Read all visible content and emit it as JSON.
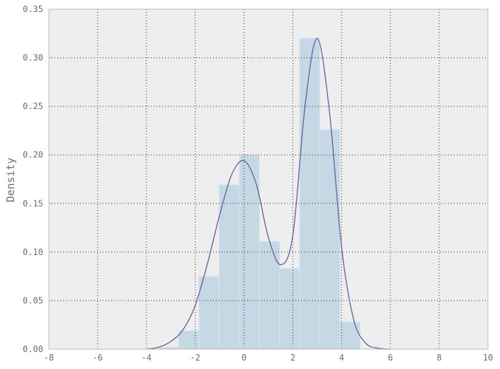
{
  "chart_data": {
    "type": "bar",
    "title": "",
    "xlabel": "",
    "ylabel": "Density",
    "xlim": [
      -8,
      10
    ],
    "ylim": [
      0,
      0.35
    ],
    "xticks": [
      "-8",
      "-6",
      "-4",
      "-2",
      "0",
      "2",
      "4",
      "6",
      "8",
      "10"
    ],
    "yticks": [
      "0.00",
      "0.05",
      "0.10",
      "0.15",
      "0.20",
      "0.25",
      "0.30",
      "0.35"
    ],
    "grid": true,
    "histogram": {
      "bin_edges": [
        -3.5,
        -2.67,
        -1.85,
        -1.02,
        -0.19,
        0.63,
        1.46,
        2.28,
        3.11,
        3.93,
        4.76
      ],
      "densities": [
        0.002,
        0.019,
        0.075,
        0.169,
        0.2,
        0.111,
        0.083,
        0.32,
        0.226,
        0.028
      ]
    },
    "kde": {
      "x": [
        -4,
        -3.5,
        -3,
        -2.5,
        -2,
        -1.5,
        -1,
        -0.5,
        0,
        0.5,
        1,
        1.5,
        2,
        2.5,
        3,
        3.5,
        4,
        4.5,
        5,
        5.5,
        6
      ],
      "y": [
        0.0,
        0.002,
        0.008,
        0.02,
        0.045,
        0.088,
        0.138,
        0.18,
        0.194,
        0.17,
        0.115,
        0.087,
        0.117,
        0.25,
        0.32,
        0.245,
        0.105,
        0.03,
        0.006,
        0.001,
        0.0
      ]
    },
    "colors": {
      "background": "#eeeeee",
      "bar_fill": "#c5d9e4",
      "bar_edge": "#d6e4ec",
      "kde_line": "#7064a0",
      "grid": "#222222",
      "frame": "#bcbcbc",
      "tick_text": "#6e6e6e"
    }
  }
}
